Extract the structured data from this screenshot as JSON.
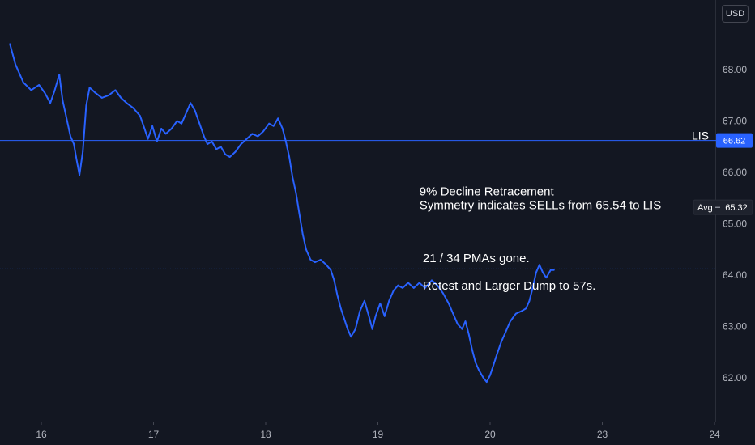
{
  "currency_selector": {
    "label": "USD"
  },
  "chart_data": {
    "type": "line",
    "title": "",
    "xlabel": "",
    "ylabel": "",
    "ylim": [
      61.2,
      69.2
    ],
    "grid": false,
    "legend": "none",
    "colors": {
      "line": "#2962ff",
      "background": "#131722",
      "text": "#b2b5be",
      "annotation": "#ffffff",
      "badge": "#2962ff",
      "avg_badge": "#1e222d"
    },
    "x_ticks": [
      {
        "label": "16",
        "x": 1
      },
      {
        "label": "17",
        "x": 2
      },
      {
        "label": "18",
        "x": 3
      },
      {
        "label": "19",
        "x": 4
      },
      {
        "label": "20",
        "x": 5
      },
      {
        "label": "23",
        "x": 6
      },
      {
        "label": "24",
        "x": 7
      }
    ],
    "y_ticks": [
      {
        "label": "68.00",
        "value": 68.0
      },
      {
        "label": "67.00",
        "value": 67.0
      },
      {
        "label": "66.00",
        "value": 66.0
      },
      {
        "label": "65.00",
        "value": 65.0
      },
      {
        "label": "64.00",
        "value": 64.0
      },
      {
        "label": "63.00",
        "value": 63.0
      },
      {
        "label": "62.00",
        "value": 62.0
      }
    ],
    "series": [
      {
        "values": [
          [
            0.72,
            68.5
          ],
          [
            0.77,
            68.1
          ],
          [
            0.84,
            67.75
          ],
          [
            0.91,
            67.6
          ],
          [
            0.98,
            67.7
          ],
          [
            1.03,
            67.55
          ],
          [
            1.08,
            67.35
          ],
          [
            1.12,
            67.6
          ],
          [
            1.16,
            67.9
          ],
          [
            1.19,
            67.4
          ],
          [
            1.22,
            67.1
          ],
          [
            1.26,
            66.7
          ],
          [
            1.29,
            66.55
          ],
          [
            1.31,
            66.3
          ],
          [
            1.34,
            65.95
          ],
          [
            1.37,
            66.4
          ],
          [
            1.4,
            67.3
          ],
          [
            1.43,
            67.65
          ],
          [
            1.48,
            67.55
          ],
          [
            1.54,
            67.45
          ],
          [
            1.6,
            67.5
          ],
          [
            1.66,
            67.6
          ],
          [
            1.71,
            67.45
          ],
          [
            1.76,
            67.35
          ],
          [
            1.82,
            67.25
          ],
          [
            1.88,
            67.1
          ],
          [
            1.92,
            66.85
          ],
          [
            1.95,
            66.65
          ],
          [
            1.99,
            66.9
          ],
          [
            2.03,
            66.6
          ],
          [
            2.07,
            66.85
          ],
          [
            2.11,
            66.75
          ],
          [
            2.16,
            66.85
          ],
          [
            2.21,
            67.0
          ],
          [
            2.25,
            66.95
          ],
          [
            2.29,
            67.15
          ],
          [
            2.33,
            67.35
          ],
          [
            2.37,
            67.2
          ],
          [
            2.41,
            66.95
          ],
          [
            2.45,
            66.7
          ],
          [
            2.48,
            66.55
          ],
          [
            2.52,
            66.6
          ],
          [
            2.56,
            66.45
          ],
          [
            2.6,
            66.5
          ],
          [
            2.64,
            66.35
          ],
          [
            2.68,
            66.3
          ],
          [
            2.73,
            66.4
          ],
          [
            2.78,
            66.55
          ],
          [
            2.83,
            66.65
          ],
          [
            2.88,
            66.75
          ],
          [
            2.93,
            66.7
          ],
          [
            2.98,
            66.8
          ],
          [
            3.03,
            66.95
          ],
          [
            3.07,
            66.9
          ],
          [
            3.11,
            67.05
          ],
          [
            3.15,
            66.85
          ],
          [
            3.18,
            66.6
          ],
          [
            3.21,
            66.3
          ],
          [
            3.24,
            65.9
          ],
          [
            3.27,
            65.6
          ],
          [
            3.3,
            65.2
          ],
          [
            3.33,
            64.8
          ],
          [
            3.36,
            64.5
          ],
          [
            3.4,
            64.3
          ],
          [
            3.44,
            64.25
          ],
          [
            3.49,
            64.3
          ],
          [
            3.54,
            64.2
          ],
          [
            3.58,
            64.1
          ],
          [
            3.61,
            63.9
          ],
          [
            3.64,
            63.6
          ],
          [
            3.67,
            63.35
          ],
          [
            3.7,
            63.15
          ],
          [
            3.73,
            62.95
          ],
          [
            3.76,
            62.8
          ],
          [
            3.8,
            62.95
          ],
          [
            3.84,
            63.3
          ],
          [
            3.88,
            63.5
          ],
          [
            3.92,
            63.2
          ],
          [
            3.95,
            62.95
          ],
          [
            3.98,
            63.2
          ],
          [
            4.02,
            63.45
          ],
          [
            4.06,
            63.2
          ],
          [
            4.1,
            63.5
          ],
          [
            4.14,
            63.7
          ],
          [
            4.18,
            63.8
          ],
          [
            4.22,
            63.75
          ],
          [
            4.27,
            63.85
          ],
          [
            4.32,
            63.75
          ],
          [
            4.37,
            63.85
          ],
          [
            4.42,
            63.75
          ],
          [
            4.48,
            63.9
          ],
          [
            4.53,
            63.8
          ],
          [
            4.58,
            63.65
          ],
          [
            4.63,
            63.45
          ],
          [
            4.67,
            63.25
          ],
          [
            4.71,
            63.05
          ],
          [
            4.75,
            62.95
          ],
          [
            4.78,
            63.1
          ],
          [
            4.81,
            62.85
          ],
          [
            4.84,
            62.55
          ],
          [
            4.87,
            62.3
          ],
          [
            4.9,
            62.15
          ],
          [
            4.94,
            62.0
          ],
          [
            4.97,
            61.92
          ],
          [
            5.0,
            62.05
          ],
          [
            5.03,
            62.25
          ],
          [
            5.06,
            62.45
          ],
          [
            5.1,
            62.7
          ],
          [
            5.14,
            62.9
          ],
          [
            5.18,
            63.1
          ],
          [
            5.23,
            63.25
          ],
          [
            5.28,
            63.3
          ],
          [
            5.32,
            63.35
          ],
          [
            5.35,
            63.5
          ],
          [
            5.38,
            63.75
          ],
          [
            5.41,
            64.05
          ],
          [
            5.44,
            64.2
          ],
          [
            5.47,
            64.05
          ],
          [
            5.5,
            63.95
          ],
          [
            5.54,
            64.1
          ],
          [
            5.57,
            64.1
          ]
        ]
      }
    ],
    "levels": [
      {
        "name": "LIS",
        "value": 66.62,
        "label": "66.62"
      },
      {
        "name": "Avg",
        "value": 65.32,
        "label": "65.32"
      },
      {
        "name": "",
        "value": 64.12
      }
    ],
    "annotations": [
      {
        "text": "9% Decline Retracement",
        "x": 4.37,
        "y": 65.55
      },
      {
        "text": "Symmetry indicates SELLs from 65.54 to LIS",
        "x": 4.37,
        "y": 65.28
      },
      {
        "text": "21  /  34 PMAs gone.",
        "x": 4.4,
        "y": 64.25
      },
      {
        "text": "Retest and Larger Dump to 57s.",
        "x": 4.4,
        "y": 63.72
      }
    ]
  }
}
